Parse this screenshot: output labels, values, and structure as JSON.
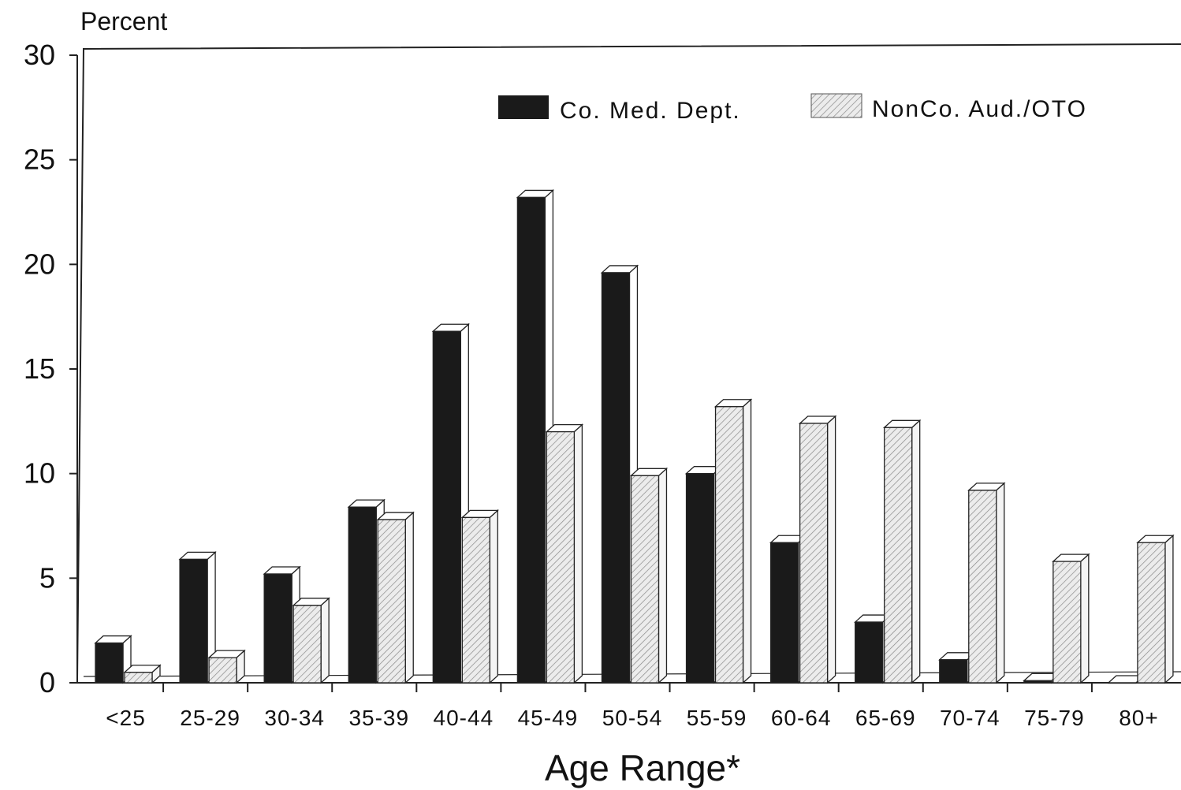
{
  "chart_data": {
    "type": "bar",
    "style": "3d-clustered",
    "ylabel": "Percent",
    "xlabel": "Age Range*",
    "ylim": [
      0,
      30
    ],
    "yticks": [
      0,
      5,
      10,
      15,
      20,
      25,
      30
    ],
    "categories": [
      "<25",
      "25-29",
      "30-34",
      "35-39",
      "40-44",
      "45-49",
      "50-54",
      "55-59",
      "60-64",
      "65-69",
      "70-74",
      "75-79",
      "80+"
    ],
    "series": [
      {
        "name": "Co. Med. Dept.",
        "fill": "solid-black",
        "values": [
          1.9,
          5.9,
          5.2,
          8.4,
          16.8,
          23.2,
          19.6,
          10.0,
          6.7,
          2.9,
          1.1,
          0.1,
          0.0
        ]
      },
      {
        "name": "NonCo. Aud./OTO",
        "fill": "hatched-gray",
        "values": [
          0.5,
          1.2,
          3.7,
          7.8,
          7.9,
          12.0,
          9.9,
          13.2,
          12.4,
          12.2,
          9.2,
          5.8,
          6.7
        ]
      }
    ],
    "legend_position": "top-right",
    "grid": false
  },
  "colors": {
    "series_dark": "#1a1a1a",
    "series_light": "#e6e6e6",
    "axis": "#222222"
  }
}
